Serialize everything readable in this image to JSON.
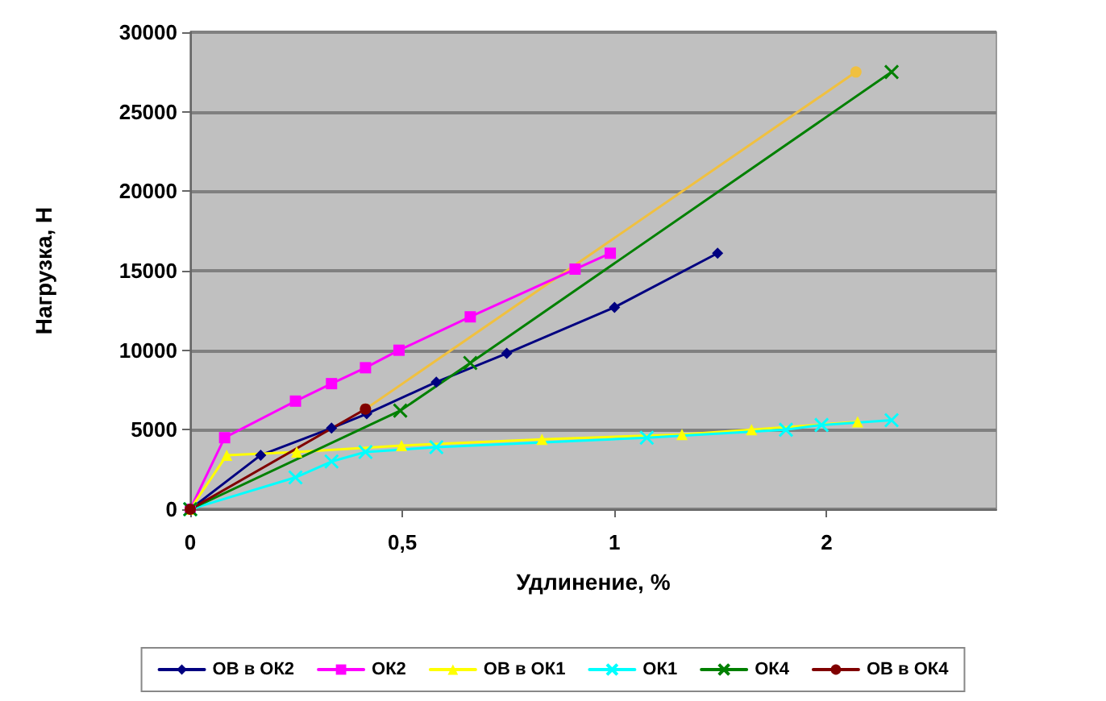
{
  "chart_data": {
    "type": "line",
    "xlabel": "Удлинение, %",
    "ylabel": "Нагрузка, Н",
    "xlim": [
      0,
      1.9
    ],
    "xticks": [
      0,
      {
        "value": 0.5,
        "label": "0,5"
      },
      1,
      {
        "value": 1.5,
        "label": "2"
      }
    ],
    "ylim": [
      0,
      30000
    ],
    "yticks": [
      0,
      5000,
      10000,
      15000,
      20000,
      25000,
      30000
    ],
    "grid": "y",
    "legend": "bottom",
    "series": [
      {
        "name": "ОВ в ОК2",
        "color": "#000080",
        "marker": "diamond",
        "x": [
          0,
          0.166,
          0.333,
          0.416,
          0.58,
          0.746,
          1.0,
          1.243
        ],
        "values": [
          0,
          3400,
          5100,
          6000,
          8000,
          9800,
          12700,
          16100
        ]
      },
      {
        "name": "ОК2",
        "color": "#ff00ff",
        "marker": "square",
        "x": [
          0,
          0.081,
          0.248,
          0.333,
          0.413,
          0.492,
          0.66,
          0.907,
          0.99
        ],
        "values": [
          0,
          4500,
          6800,
          7900,
          8900,
          10000,
          12100,
          15100,
          16100
        ]
      },
      {
        "name": "ОВ в ОК1",
        "color": "#ffff00",
        "marker": "triangle",
        "x": [
          0,
          0.086,
          0.251,
          0.498,
          0.829,
          1.159,
          1.323,
          1.573
        ],
        "values": [
          0,
          3400,
          3600,
          4000,
          4400,
          4700,
          5000,
          5500
        ]
      },
      {
        "name": "ОК1",
        "color": "#00ffff",
        "marker": "cross",
        "x": [
          0,
          0.248,
          0.333,
          0.413,
          0.58,
          1.076,
          1.404,
          1.488,
          1.653
        ],
        "values": [
          0,
          2000,
          3000,
          3600,
          3900,
          4500,
          5000,
          5300,
          5600
        ]
      },
      {
        "name": "ОК4",
        "color": "#008000",
        "marker": "cross",
        "x": [
          0,
          0.495,
          0.66,
          1.653
        ],
        "values": [
          0,
          6200,
          9200,
          27500
        ]
      },
      {
        "name": "ОВ в ОК4",
        "color": "#800000",
        "marker": "circle",
        "x": [
          0,
          0.413
        ],
        "values": [
          0,
          6300
        ]
      },
      {
        "color": "#f0c040",
        "marker": "circle",
        "x": [
          0.413,
          1.569
        ],
        "values": [
          6300,
          27500
        ]
      }
    ]
  }
}
